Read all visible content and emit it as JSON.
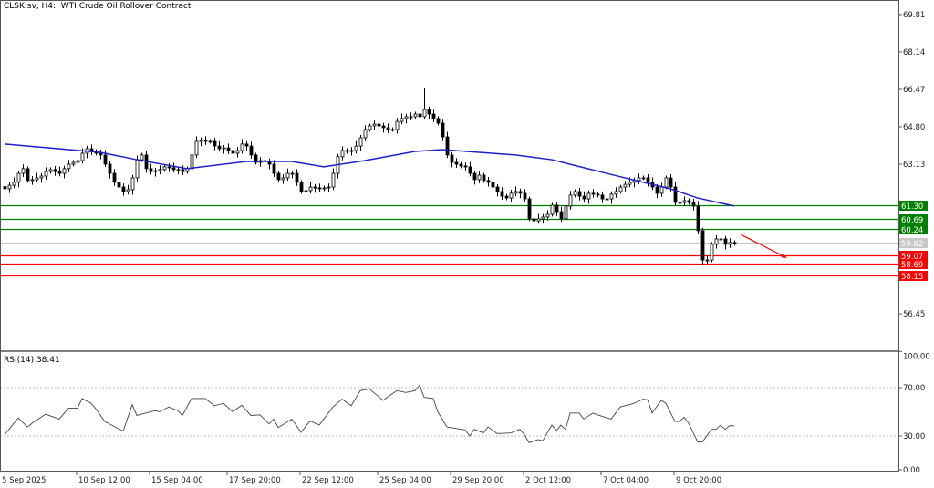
{
  "header": {
    "symbol": "CLSK.sv, H4:",
    "description": "WTI Crude Oil Rollover Contract"
  },
  "rsi_header": {
    "label": "RSI(14) 38.41"
  },
  "colors": {
    "bull_body": "#ffffff",
    "bear_body": "#000000",
    "candle_outline": "#000000",
    "ma_line": "#1f1fcc",
    "support_line": "#ff0000",
    "resistance_line": "#008000",
    "current_price_line": "#c8c8c8",
    "rsi_line": "#444444",
    "arrow": "#ff0000"
  },
  "chart_data": [
    {
      "type": "candlestick",
      "title": "CLSK.sv, H4: WTI Crude Oil Rollover Contract",
      "ylim": [
        54.78,
        70.46
      ],
      "y_ticks": [
        "69.81",
        "68.14",
        "66.47",
        "64.80",
        "63.13",
        "56.45"
      ],
      "x_ticks": [
        {
          "bar": 0,
          "label": "5 Sep 2025"
        },
        {
          "bar": 16,
          "label": "10 Sep 12:00"
        },
        {
          "bar": 32,
          "label": "15 Sep 04:00"
        },
        {
          "bar": 49,
          "label": "17 Sep 20:00"
        },
        {
          "bar": 65,
          "label": "22 Sep 12:00"
        },
        {
          "bar": 82,
          "label": "25 Sep 04:00"
        },
        {
          "bar": 98,
          "label": "29 Sep 20:00"
        },
        {
          "bar": 114,
          "label": "2 Oct 12:00"
        },
        {
          "bar": 131,
          "label": "7 Oct 04:00"
        },
        {
          "bar": 147,
          "label": "9 Oct 20:00"
        }
      ],
      "closes": [
        62.03,
        62.19,
        62.32,
        62.72,
        62.93,
        62.4,
        62.44,
        62.52,
        62.6,
        62.8,
        62.89,
        62.8,
        62.72,
        62.93,
        63.13,
        63.21,
        63.29,
        63.62,
        63.82,
        63.7,
        63.62,
        63.54,
        63.13,
        62.72,
        62.32,
        62.11,
        61.91,
        61.99,
        62.52,
        63.33,
        63.54,
        62.93,
        62.8,
        62.84,
        62.89,
        63.01,
        62.97,
        62.89,
        62.89,
        62.8,
        62.93,
        63.54,
        64.15,
        64.19,
        64.15,
        64.15,
        63.94,
        63.82,
        63.86,
        63.74,
        63.62,
        63.74,
        64.03,
        63.94,
        63.54,
        63.21,
        63.29,
        63.25,
        63.13,
        62.72,
        62.44,
        62.52,
        62.72,
        62.72,
        62.32,
        61.91,
        61.95,
        62.11,
        62.07,
        62.03,
        62.07,
        62.11,
        62.72,
        63.46,
        63.74,
        63.7,
        63.74,
        63.94,
        64.31,
        64.68,
        64.84,
        64.92,
        64.84,
        64.76,
        64.68,
        64.68,
        65.04,
        65.17,
        65.25,
        65.25,
        65.37,
        65.25,
        65.57,
        65.37,
        65.17,
        64.96,
        64.35,
        63.54,
        63.21,
        63.13,
        63.05,
        63.01,
        62.72,
        62.44,
        62.64,
        62.4,
        62.32,
        62.11,
        61.91,
        61.7,
        61.62,
        61.83,
        61.91,
        61.83,
        61.58,
        60.69,
        60.6,
        60.69,
        60.77,
        60.89,
        61.3,
        61.01,
        60.69,
        61.26,
        61.75,
        61.91,
        61.7,
        61.58,
        61.83,
        61.79,
        61.75,
        61.58,
        61.58,
        61.79,
        61.91,
        62.11,
        62.23,
        62.32,
        62.4,
        62.52,
        62.52,
        62.32,
        62.11,
        61.83,
        62.11,
        62.52,
        62.11,
        61.42,
        61.42,
        61.5,
        61.42,
        61.26,
        60.16,
        58.85,
        58.85,
        59.55,
        59.79,
        59.79,
        59.55,
        59.63,
        59.59
      ],
      "extreme_highs": [
        {
          "bar": 92,
          "high": 66.55
        }
      ],
      "extreme_lows": [
        {
          "bar": 153,
          "low": 58.62
        }
      ],
      "moving_average": [
        [
          0,
          64.03
        ],
        [
          21,
          63.66
        ],
        [
          29,
          63.33
        ],
        [
          40,
          62.93
        ],
        [
          53,
          63.25
        ],
        [
          63,
          63.25
        ],
        [
          70,
          63.01
        ],
        [
          79,
          63.29
        ],
        [
          90,
          63.7
        ],
        [
          96,
          63.78
        ],
        [
          112,
          63.54
        ],
        [
          120,
          63.33
        ],
        [
          132,
          62.72
        ],
        [
          146,
          62.03
        ],
        [
          152,
          61.62
        ],
        [
          160,
          61.26
        ]
      ],
      "horizontal_levels": [
        {
          "price": 61.3,
          "label": "61.30",
          "kind": "resistance"
        },
        {
          "price": 60.69,
          "label": "60.69",
          "kind": "resistance"
        },
        {
          "price": 60.24,
          "label": "60.24",
          "kind": "resistance"
        },
        {
          "price": 59.62,
          "label": "59.62",
          "kind": "current"
        },
        {
          "price": 59.07,
          "label": "59.07",
          "kind": "support"
        },
        {
          "price": 58.69,
          "label": "58.69",
          "kind": "support"
        },
        {
          "price": 58.15,
          "label": "58.15",
          "kind": "support"
        }
      ],
      "arrow": {
        "from": [
          161.5,
          59.98
        ],
        "to": [
          171.5,
          58.95
        ]
      }
    },
    {
      "type": "line",
      "title": "RSI(14) 38.41",
      "ylim": [
        0,
        100
      ],
      "y_ticks": [
        "100.00",
        "70.00",
        "30.00",
        "0.00"
      ],
      "levels": [
        70,
        30
      ],
      "points": [
        [
          0,
          31
        ],
        [
          3,
          45
        ],
        [
          5,
          37.5
        ],
        [
          6,
          40.5
        ],
        [
          9,
          48
        ],
        [
          12,
          44
        ],
        [
          14,
          53
        ],
        [
          16,
          53
        ],
        [
          17,
          61
        ],
        [
          19,
          57
        ],
        [
          20,
          52.5
        ],
        [
          22,
          42
        ],
        [
          26,
          34
        ],
        [
          28,
          56
        ],
        [
          29,
          47
        ],
        [
          33,
          51
        ],
        [
          34,
          50
        ],
        [
          36,
          54
        ],
        [
          38,
          51
        ],
        [
          39,
          47
        ],
        [
          41,
          61
        ],
        [
          44,
          61
        ],
        [
          46,
          55
        ],
        [
          48,
          57
        ],
        [
          50,
          50
        ],
        [
          52,
          55.5
        ],
        [
          54,
          47
        ],
        [
          56,
          47.5
        ],
        [
          58,
          40
        ],
        [
          59,
          44
        ],
        [
          60,
          37
        ],
        [
          63,
          44
        ],
        [
          65,
          33
        ],
        [
          67,
          42.5
        ],
        [
          69,
          39
        ],
        [
          72,
          54
        ],
        [
          74,
          60.5
        ],
        [
          76,
          55
        ],
        [
          78,
          67.5
        ],
        [
          80,
          69
        ],
        [
          83,
          59.5
        ],
        [
          86,
          67.5
        ],
        [
          88,
          66
        ],
        [
          90,
          67.5
        ],
        [
          91,
          72
        ],
        [
          92,
          62
        ],
        [
          94,
          61
        ],
        [
          95,
          50
        ],
        [
          97,
          37.5
        ],
        [
          101,
          35
        ],
        [
          102,
          30
        ],
        [
          103,
          35.5
        ],
        [
          105,
          32.5
        ],
        [
          106,
          37.5
        ],
        [
          108,
          32
        ],
        [
          111,
          32.5
        ],
        [
          113,
          35.5
        ],
        [
          114,
          31
        ],
        [
          115,
          24.5
        ],
        [
          117,
          27
        ],
        [
          118,
          26
        ],
        [
          120,
          39
        ],
        [
          121,
          34.5
        ],
        [
          122,
          39
        ],
        [
          123,
          35.5
        ],
        [
          124,
          49
        ],
        [
          126,
          49
        ],
        [
          127,
          44
        ],
        [
          129,
          49
        ],
        [
          130,
          47.5
        ],
        [
          133,
          44
        ],
        [
          135,
          54
        ],
        [
          138,
          57
        ],
        [
          140,
          60.5
        ],
        [
          141,
          60
        ],
        [
          142,
          49
        ],
        [
          144,
          59.5
        ],
        [
          145,
          57
        ],
        [
          147,
          42
        ],
        [
          148,
          42
        ],
        [
          149,
          45.5
        ],
        [
          150,
          40.5
        ],
        [
          152,
          25
        ],
        [
          153,
          25
        ],
        [
          155,
          35.5
        ],
        [
          156,
          35.5
        ],
        [
          157,
          39
        ],
        [
          158,
          35.5
        ],
        [
          159,
          38.5
        ],
        [
          160,
          38.41
        ]
      ]
    }
  ]
}
